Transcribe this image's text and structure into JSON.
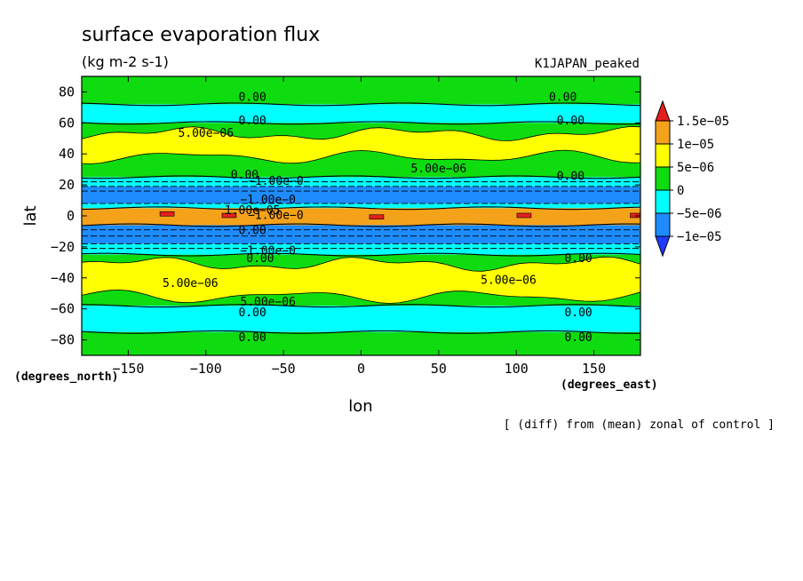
{
  "chart_data": {
    "type": "heatmap",
    "title": "surface evaporation flux",
    "units": "(kg m-2 s-1)",
    "run_label": "K1JAPAN_peaked",
    "note": "[ (diff) from (mean) zonal of control ]",
    "xlabel": "lon",
    "ylabel": "lat",
    "x_units": "(degrees_east)",
    "y_units": "(degrees_north)",
    "xlim": [
      -180,
      180
    ],
    "ylim": [
      -90,
      90
    ],
    "x_ticks": [
      -150,
      -100,
      -50,
      0,
      50,
      100,
      150
    ],
    "x_tick_labels": [
      "−150",
      "−100",
      "−50",
      "0",
      "50",
      "100",
      "150"
    ],
    "y_ticks": [
      80,
      60,
      40,
      20,
      0,
      -20,
      -40,
      -60,
      -80
    ],
    "y_tick_labels": [
      "80",
      "60",
      "40",
      "20",
      "0",
      "−20",
      "−40",
      "−60",
      "−80"
    ],
    "colorbar": {
      "labels": [
        "1.5e−05",
        "1e−05",
        "5e−06",
        "0",
        "−5e−06",
        "−1e−05"
      ],
      "levels": [
        1.5e-05,
        1e-05,
        5e-06,
        0,
        -5e-06,
        -1e-05
      ],
      "colors": [
        "#e51e1e",
        "#f5a21b",
        "#ffff00",
        "#0fdc0f",
        "#00ffff",
        "#1e8cff",
        "#1e3cff"
      ]
    },
    "bands": [
      {
        "lat_range": [
          72,
          90
        ],
        "level": "0 to 5e-06",
        "color": "#0fdc0f"
      },
      {
        "lat_range": [
          60,
          72
        ],
        "level": "-5e-06 to 0",
        "color": "#00ffff"
      },
      {
        "lat_range": [
          25,
          60
        ],
        "level": "0 to 5e-06 (5e-06 to 1e-05 near 35-55)",
        "color": "#0fdc0f"
      },
      {
        "lat_range": [
          19,
          25
        ],
        "level": "-5e-06 to 0",
        "color": "#00ffff"
      },
      {
        "lat_range": [
          8,
          19
        ],
        "level": "-1e-05 to -5e-06",
        "color": "#1e8cff"
      },
      {
        "lat_range": [
          5,
          8
        ],
        "level": "-5e-06 to 0",
        "color": "#00ffff"
      },
      {
        "lat_range": [
          -6,
          5
        ],
        "level": "5e-06 to 1e-05 (>1.5e-05 patches)",
        "color": "#f5a21b"
      },
      {
        "lat_range": [
          -18,
          -6
        ],
        "level": "-1e-05 to -5e-06",
        "color": "#1e8cff"
      },
      {
        "lat_range": [
          -25,
          -18
        ],
        "level": "-5e-06 to 0",
        "color": "#00ffff"
      },
      {
        "lat_range": [
          -58,
          -25
        ],
        "level": "0 to 5e-06 (5e-06 to 1e-05 near -30 to -52)",
        "color": "#0fdc0f"
      },
      {
        "lat_range": [
          -75,
          -58
        ],
        "level": "-5e-06 to 0",
        "color": "#00ffff"
      },
      {
        "lat_range": [
          -90,
          -75
        ],
        "level": "0 to 5e-06",
        "color": "#0fdc0f"
      }
    ],
    "contour_labels": [
      {
        "text": "0.00",
        "lon": -70,
        "lat": 77
      },
      {
        "text": "0.00",
        "lon": 130,
        "lat": 77
      },
      {
        "text": "0.00",
        "lon": -70,
        "lat": 62
      },
      {
        "text": "0.00",
        "lon": 135,
        "lat": 62
      },
      {
        "text": "5.00e−06",
        "lon": -100,
        "lat": 54
      },
      {
        "text": "5.00e−06",
        "lon": 50,
        "lat": 31
      },
      {
        "text": "0.00",
        "lon": -75,
        "lat": 27
      },
      {
        "text": "0.00",
        "lon": 135,
        "lat": 26
      },
      {
        "text": "−1.00e−0",
        "lon": -55,
        "lat": 23
      },
      {
        "text": "−1.00e−0",
        "lon": -60,
        "lat": 11
      },
      {
        "text": "1.00e−05",
        "lon": -70,
        "lat": 4
      },
      {
        "text": "−1.00e−0",
        "lon": -55,
        "lat": 1
      },
      {
        "text": "0.00",
        "lon": -70,
        "lat": -9
      },
      {
        "text": "−1.00e−0",
        "lon": -60,
        "lat": -22
      },
      {
        "text": "0.00",
        "lon": -65,
        "lat": -27
      },
      {
        "text": "0.00",
        "lon": 140,
        "lat": -27
      },
      {
        "text": "5.00e−06",
        "lon": -110,
        "lat": -43
      },
      {
        "text": "5.00e−06",
        "lon": 95,
        "lat": -41
      },
      {
        "text": "5.00e−06",
        "lon": -60,
        "lat": -55
      },
      {
        "text": "0.00",
        "lon": -70,
        "lat": -62
      },
      {
        "text": "0.00",
        "lon": 140,
        "lat": -62
      },
      {
        "text": "0.00",
        "lon": -70,
        "lat": -78
      },
      {
        "text": "0.00",
        "lon": 140,
        "lat": -78
      }
    ]
  }
}
